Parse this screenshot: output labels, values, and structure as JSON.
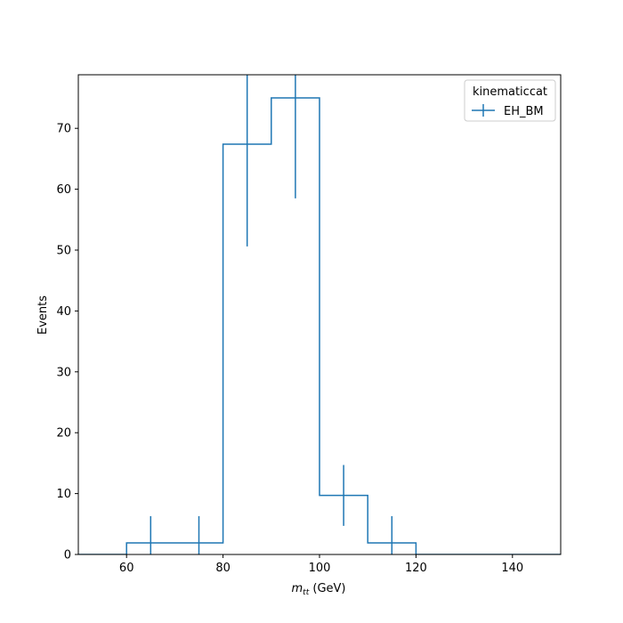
{
  "chart_data": {
    "type": "histogram",
    "title": "",
    "xlabel_main": "m",
    "xlabel_sub": "tt",
    "xlabel_unit": " (GeV)",
    "ylabel": "Events",
    "xlim": [
      50,
      150
    ],
    "ylim": [
      0,
      78.8
    ],
    "xticks": [
      60,
      80,
      100,
      120,
      140
    ],
    "yticks": [
      0,
      10,
      20,
      30,
      40,
      50,
      60,
      70
    ],
    "grid": false,
    "legend": {
      "title": "kinematiccat",
      "placement": "top-right"
    },
    "series": [
      {
        "name": "EH_BM",
        "color": "#1f77b4",
        "bin_edges": [
          50,
          60,
          70,
          80,
          90,
          100,
          110,
          120,
          130,
          140,
          150
        ],
        "values": [
          0,
          1.9,
          1.9,
          67.4,
          75.0,
          9.7,
          1.9,
          0,
          0,
          0
        ],
        "errors": [
          0,
          4.4,
          4.4,
          16.8,
          16.5,
          5.0,
          4.4,
          0,
          0,
          0
        ]
      }
    ]
  }
}
